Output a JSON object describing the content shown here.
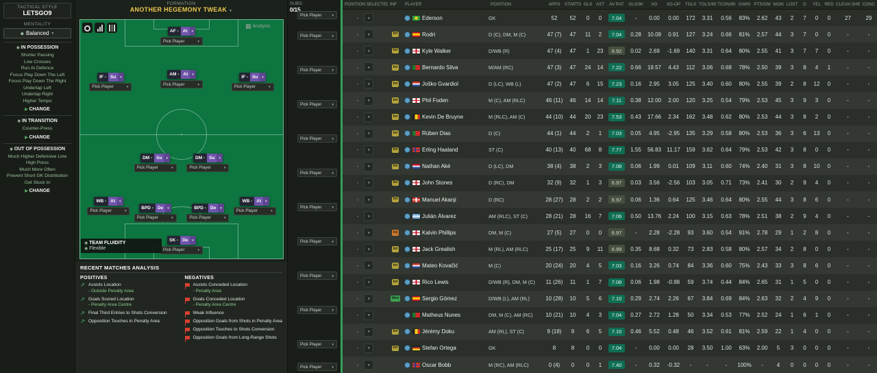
{
  "icons": {
    "chevron_down": "▼",
    "change_arrow": "▶",
    "positive_trend": "↗",
    "section_bullet": "◉",
    "mentality_shield": "◆",
    "analysis_grid": "▦",
    "fluidity_bullet": "◉"
  },
  "sidebar": {
    "tactical_style_label": "TACTICAL STYLE",
    "tactical_style_name": "LETSGO9",
    "mentality_label": "MENTALITY",
    "mentality_value": "Balanced",
    "change_label": "CHANGE",
    "sections": [
      {
        "title": "IN POSSESSION",
        "items": [
          "Shorter Passing",
          "Low Crosses",
          "Run At Defence",
          "Focus Play Down The Left",
          "Focus Play Down The Right",
          "Underlap Left",
          "Underlap Right",
          "Higher Tempo"
        ]
      },
      {
        "title": "IN TRANSITION",
        "items": [
          "Counter-Press"
        ]
      },
      {
        "title": "OUT OF POSSESSION",
        "items": [
          "Much Higher Defensive Line",
          "High Press",
          "Much More Often",
          "Prevent Short GK Distribution",
          "Get Stuck In"
        ]
      }
    ]
  },
  "formation": {
    "label": "FORMATION",
    "name": "ANOTHER HEGEMONY TWEAK",
    "analysis_label": "Analysis",
    "pick_label": "Pick Player",
    "positions": [
      {
        "role": "AF",
        "duty": "At",
        "slot": "st"
      },
      {
        "role": "IF",
        "duty": "Su",
        "slot": "aml"
      },
      {
        "role": "AM",
        "duty": "At",
        "slot": "amc"
      },
      {
        "role": "IF",
        "duty": "Su",
        "slot": "amr"
      },
      {
        "role": "DM",
        "duty": "Su",
        "slot": "dml"
      },
      {
        "role": "DM",
        "duty": "Su",
        "slot": "dmr"
      },
      {
        "role": "WB",
        "duty": "At",
        "slot": "wbl"
      },
      {
        "role": "BPD",
        "duty": "De",
        "slot": "dcl"
      },
      {
        "role": "BPD",
        "duty": "De",
        "slot": "dcr"
      },
      {
        "role": "WB",
        "duty": "At",
        "slot": "wbr"
      },
      {
        "role": "SK",
        "duty": "De",
        "slot": "gk"
      }
    ]
  },
  "subs": {
    "label": "SUBS:",
    "count": "0/15"
  },
  "fluidity": {
    "label": "TEAM FLUIDITY",
    "value": "Flexible"
  },
  "analysis": {
    "title": "RECENT MATCHES ANALYSIS",
    "positives_label": "POSITIVES",
    "negatives_label": "NEGATIVES",
    "positives": [
      {
        "title": "Assists Location",
        "subtitle": "- Outside Penalty Area"
      },
      {
        "title": "Goals Scored Location",
        "subtitle": "- Penalty Area Centre"
      },
      {
        "title": "Final Third Entries to Shots Conversion",
        "subtitle": ""
      },
      {
        "title": "Opposition Touches in Penalty Area",
        "subtitle": ""
      }
    ],
    "negatives": [
      {
        "title": "Assists Conceded Location",
        "subtitle": "- Penalty Area"
      },
      {
        "title": "Goals Conceded Location",
        "subtitle": "- Penalty Area Centre"
      },
      {
        "title": "Weak Influence",
        "subtitle": ""
      },
      {
        "title": "Opposition Goals from Shots in Penalty Area",
        "subtitle": ""
      },
      {
        "title": "Opposition Touches to Shots Conversion",
        "subtitle": ""
      },
      {
        "title": "Opposition Goals from Long-Range Shots",
        "subtitle": ""
      }
    ]
  },
  "table": {
    "headers": [
      "POSITION SELECTED",
      "INF",
      "PLAYER",
      "POSITION",
      "APPS",
      "STARTS",
      "GLS",
      "AST",
      "AV RAT",
      "GLS/90",
      "XG",
      "XG-OP",
      "TGLS",
      "TGLS/90",
      "TCON/90",
      "GWIN",
      "PTS/GM",
      "WON",
      "LOST",
      "D",
      "YEL",
      "RED",
      "CLEAN SHEETS",
      "CONC"
    ],
    "rows": [
      {
        "sel": "-",
        "inf": "",
        "name": "Ederson",
        "nat": "br",
        "position": "GK",
        "stats": [
          "52",
          "52",
          "0",
          "0",
          "7.04",
          "-",
          "0.00",
          "0.00",
          "172",
          "3.31",
          "0.56",
          "83%",
          "2.62",
          "43",
          "2",
          "7",
          "0",
          "0",
          "27",
          "29"
        ]
      },
      {
        "sel": "-",
        "inf": "Int",
        "name": "Rodri",
        "nat": "es",
        "position": "D (C), DM, M (C)",
        "stats": [
          "47 (7)",
          "47",
          "11",
          "2",
          "7.04",
          "0.28",
          "10.09",
          "0.91",
          "127",
          "3.24",
          "0.66",
          "81%",
          "2.57",
          "44",
          "3",
          "7",
          "0",
          "0",
          "-",
          "-"
        ]
      },
      {
        "sel": "-",
        "inf": "Int",
        "name": "Kyle Walker",
        "nat": "en",
        "position": "D/WB (R)",
        "stats": [
          "47 (4)",
          "47",
          "1",
          "23",
          "6.92",
          "0.02",
          "2.69",
          "-1.69",
          "140",
          "3.31",
          "0.64",
          "80%",
          "2.55",
          "41",
          "3",
          "7",
          "7",
          "0",
          "-",
          "-"
        ]
      },
      {
        "sel": "-",
        "inf": "Int",
        "name": "Bernardo Silva",
        "nat": "pt",
        "position": "M/AM (RC)",
        "stats": [
          "47 (3)",
          "47",
          "24",
          "14",
          "7.22",
          "0.66",
          "19.57",
          "4.43",
          "112",
          "3.06",
          "0.68",
          "78%",
          "2.50",
          "39",
          "3",
          "8",
          "4",
          "1",
          "-",
          "-"
        ]
      },
      {
        "sel": "-",
        "inf": "Int",
        "name": "Joško Gvardiol",
        "nat": "hr",
        "position": "D (LC), WB (L)",
        "stats": [
          "47 (2)",
          "47",
          "6",
          "15",
          "7.23",
          "0.16",
          "2.95",
          "3.05",
          "125",
          "3.40",
          "0.60",
          "80%",
          "2.55",
          "39",
          "2",
          "8",
          "12",
          "0",
          "-",
          "-"
        ]
      },
      {
        "sel": "-",
        "inf": "Int",
        "name": "Phil Foden",
        "nat": "en",
        "position": "M (C), AM (RLC)",
        "stats": [
          "46 (11)",
          "46",
          "14",
          "14",
          "7.11",
          "0.38",
          "12.00",
          "2.00",
          "120",
          "3.25",
          "0.54",
          "79%",
          "2.53",
          "45",
          "3",
          "9",
          "3",
          "0",
          "-",
          "-"
        ]
      },
      {
        "sel": "-",
        "inf": "Int",
        "name": "Kevin De Bruyne",
        "nat": "be",
        "position": "M (RLC), AM (C)",
        "stats": [
          "44 (10)",
          "44",
          "20",
          "23",
          "7.53",
          "0.43",
          "17.66",
          "2.34",
          "162",
          "3.48",
          "0.62",
          "80%",
          "2.53",
          "44",
          "3",
          "8",
          "2",
          "0",
          "-",
          "-"
        ]
      },
      {
        "sel": "-",
        "inf": "Int",
        "name": "Rúben Dias",
        "nat": "pt",
        "position": "D (C)",
        "stats": [
          "44 (1)",
          "44",
          "2",
          "1",
          "7.03",
          "0.05",
          "4.95",
          "-2.95",
          "135",
          "3.29",
          "0.58",
          "80%",
          "2.53",
          "36",
          "3",
          "6",
          "13",
          "0",
          "-",
          "-"
        ]
      },
      {
        "sel": "-",
        "inf": "Int",
        "name": "Erling Haaland",
        "nat": "no",
        "position": "ST (C)",
        "stats": [
          "40 (13)",
          "40",
          "68",
          "8",
          "7.77",
          "1.55",
          "56.83",
          "11.17",
          "159",
          "3.62",
          "0.64",
          "79%",
          "2.53",
          "42",
          "3",
          "8",
          "0",
          "0",
          "-",
          "-"
        ]
      },
      {
        "sel": "-",
        "inf": "Int",
        "name": "Nathan Aké",
        "nat": "nl",
        "position": "D (LC), DM",
        "stats": [
          "38 (4)",
          "38",
          "2",
          "3",
          "7.08",
          "0.06",
          "1.99",
          "0.01",
          "109",
          "3.11",
          "0.60",
          "74%",
          "2.40",
          "31",
          "3",
          "8",
          "10",
          "0",
          "-",
          "-"
        ]
      },
      {
        "sel": "-",
        "inf": "Int",
        "name": "John Stones",
        "nat": "en",
        "position": "D (RC), DM",
        "stats": [
          "32 (9)",
          "32",
          "1",
          "3",
          "6.97",
          "0.03",
          "3.56",
          "-2.56",
          "103",
          "3.05",
          "0.71",
          "73%",
          "2.41",
          "30",
          "2",
          "9",
          "4",
          "0",
          "-",
          "-"
        ]
      },
      {
        "sel": "-",
        "inf": "Int",
        "name": "Manuel Akanji",
        "nat": "ch",
        "position": "D (RC)",
        "stats": [
          "28 (27)",
          "28",
          "2",
          "2",
          "6.97",
          "0.06",
          "1.36",
          "0.64",
          "125",
          "3.46",
          "0.64",
          "80%",
          "2.55",
          "44",
          "3",
          "8",
          "6",
          "0",
          "-",
          "-"
        ]
      },
      {
        "sel": "-",
        "inf": "",
        "name": "Julián Álvarez",
        "nat": "ar",
        "position": "AM (RLC), ST (C)",
        "stats": [
          "28 (21)",
          "28",
          "16",
          "7",
          "7.06",
          "0.50",
          "13.76",
          "2.24",
          "100",
          "3.15",
          "0.63",
          "78%",
          "2.51",
          "38",
          "2",
          "9",
          "4",
          "0",
          "-",
          "-"
        ]
      },
      {
        "sel": "-",
        "inf": "Inj",
        "name": "Kalvin Phillips",
        "nat": "en",
        "position": "DM, M (C)",
        "stats": [
          "27 (5)",
          "27",
          "0",
          "0",
          "6.97",
          "-",
          "2.28",
          "-2.28",
          "93",
          "3.60",
          "0.54",
          "91%",
          "2.78",
          "29",
          "1",
          "2",
          "8",
          "0",
          "-",
          "-"
        ]
      },
      {
        "sel": "-",
        "inf": "Int",
        "name": "Jack Grealish",
        "nat": "en",
        "position": "M (RL), AM (RLC)",
        "stats": [
          "25 (17)",
          "25",
          "9",
          "11",
          "6.99",
          "0.35",
          "8.68",
          "0.32",
          "73",
          "2.83",
          "0.58",
          "80%",
          "2.57",
          "34",
          "2",
          "8",
          "0",
          "0",
          "-",
          "-"
        ]
      },
      {
        "sel": "-",
        "inf": "Int",
        "name": "Mateo Kovačić",
        "nat": "hr",
        "position": "M (C)",
        "stats": [
          "20 (24)",
          "20",
          "4",
          "5",
          "7.03",
          "0.16",
          "3.26",
          "0.74",
          "84",
          "3.36",
          "0.60",
          "75%",
          "2.43",
          "33",
          "3",
          "8",
          "6",
          "0",
          "-",
          "-"
        ]
      },
      {
        "sel": "-",
        "inf": "Int",
        "name": "Rico Lewis",
        "nat": "en",
        "position": "D/WB (R), DM, M (C)",
        "stats": [
          "11 (26)",
          "11",
          "1",
          "7",
          "7.08",
          "0.06",
          "1.98",
          "-0.98",
          "59",
          "3.74",
          "0.44",
          "84%",
          "2.65",
          "31",
          "1",
          "5",
          "0",
          "0",
          "-",
          "-"
        ]
      },
      {
        "sel": "-",
        "inf": "Wnt",
        "name": "Sergio Gómez",
        "nat": "es",
        "position": "D/WB (L), AM (RL)",
        "stats": [
          "10 (28)",
          "10",
          "5",
          "6",
          "7.10",
          "0.29",
          "2.74",
          "2.26",
          "67",
          "3.84",
          "0.69",
          "84%",
          "2.63",
          "32",
          "2",
          "4",
          "9",
          "0",
          "-",
          "-"
        ]
      },
      {
        "sel": "-",
        "inf": "",
        "name": "Matheus Nunes",
        "nat": "pt",
        "position": "DM, M (C), AM (RC)",
        "stats": [
          "10 (21)",
          "10",
          "4",
          "3",
          "7.04",
          "0.27",
          "2.72",
          "1.28",
          "50",
          "3.34",
          "0.53",
          "77%",
          "2.52",
          "24",
          "1",
          "6",
          "1",
          "0",
          "-",
          "-"
        ]
      },
      {
        "sel": "-",
        "inf": "Int",
        "name": "Jérémy Doku",
        "nat": "be",
        "position": "AM (RL), ST (C)",
        "stats": [
          "9 (18)",
          "9",
          "6",
          "5",
          "7.10",
          "0.46",
          "5.52",
          "0.48",
          "46",
          "3.52",
          "0.61",
          "81%",
          "2.59",
          "22",
          "1",
          "4",
          "0",
          "0",
          "-",
          "-"
        ]
      },
      {
        "sel": "-",
        "inf": "Int",
        "name": "Stefan Ortega",
        "nat": "de",
        "position": "GK",
        "stats": [
          "8",
          "8",
          "0",
          "0",
          "7.04",
          "-",
          "0.00",
          "0.00",
          "28",
          "3.50",
          "1.00",
          "63%",
          "2.00",
          "5",
          "3",
          "0",
          "0",
          "0",
          "-",
          "-"
        ]
      },
      {
        "sel": "-",
        "inf": "",
        "name": "Oscar Bobb",
        "nat": "no",
        "position": "M (RC), AM (RLC)",
        "stats": [
          "0 (4)",
          "0",
          "0",
          "1",
          "7.40",
          "-",
          "0.32",
          "-0.32",
          "-",
          "-",
          "-",
          "100%",
          "-",
          "4",
          "0",
          "0",
          "0",
          "0",
          "-",
          "-"
        ]
      }
    ]
  }
}
